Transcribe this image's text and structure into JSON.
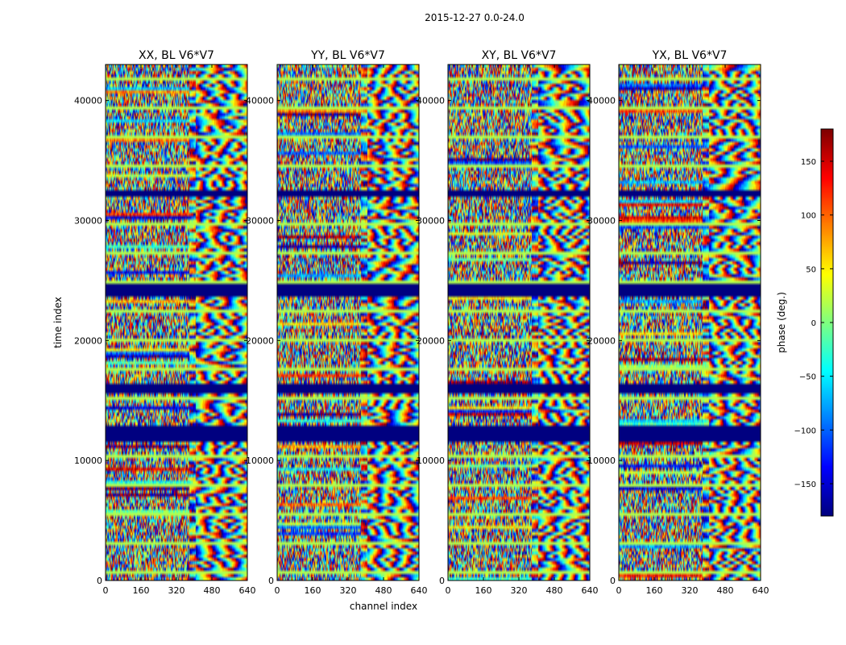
{
  "figure": {
    "suptitle": "2015-12-27 0.0-24.0"
  },
  "chart_data": {
    "type": "heatmap",
    "title": "2015-12-27 0.0-24.0",
    "xlabel": "channel index",
    "ylabel": "time index",
    "xlim": [
      0,
      640
    ],
    "ylim": [
      0,
      43000
    ],
    "x_ticks": [
      0,
      160,
      320,
      480,
      640
    ],
    "x_tick_labels": [
      "0",
      "160",
      "320",
      "480",
      "640"
    ],
    "y_ticks": [
      0,
      10000,
      20000,
      30000,
      40000
    ],
    "y_tick_labels": [
      "0",
      "10000",
      "20000",
      "30000",
      "40000"
    ],
    "colorbar": {
      "label": "phase (deg.)",
      "range": [
        -180,
        180
      ],
      "ticks": [
        150,
        100,
        50,
        0,
        -50,
        -100,
        -150
      ],
      "tick_labels": [
        "150",
        "100",
        "50",
        "0",
        "−50",
        "−100",
        "−150"
      ],
      "colormap": "jet"
    },
    "flagged_time_ranges": [
      [
        11600,
        12900
      ],
      [
        15500,
        16300
      ],
      [
        23600,
        24800
      ],
      [
        32000,
        32400
      ]
    ],
    "panels": [
      {
        "name": "XX",
        "title": "XX, BL V6*V7",
        "seed": 11
      },
      {
        "name": "YY",
        "title": "YY, BL V6*V7",
        "seed": 23
      },
      {
        "name": "XY",
        "title": "XY, BL V6*V7",
        "seed": 37
      },
      {
        "name": "YX",
        "title": "YX, BL V6*V7",
        "seed": 53
      }
    ]
  }
}
